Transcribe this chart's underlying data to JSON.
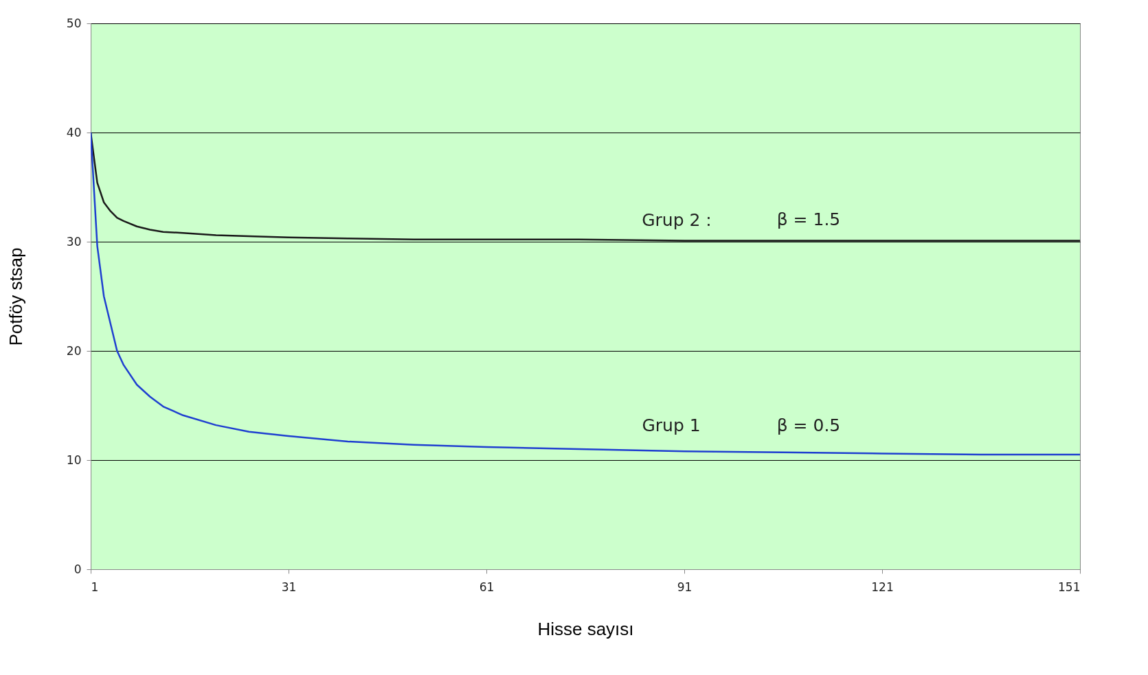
{
  "chart_data": {
    "type": "line",
    "xlabel": "Hisse sayısı",
    "ylabel": "Potföy stsap",
    "x": [
      1,
      2,
      3,
      4,
      5,
      6,
      8,
      10,
      12,
      15,
      20,
      25,
      31,
      40,
      50,
      61,
      75,
      91,
      106,
      121,
      136,
      151
    ],
    "series": [
      {
        "color": "#1a1a1a",
        "values": [
          40,
          35.4,
          33.6,
          32.8,
          32.2,
          31.9,
          31.4,
          31.1,
          30.9,
          30.8,
          30.6,
          30.5,
          30.4,
          30.3,
          30.2,
          30.2,
          30.2,
          30.1,
          30.1,
          30.1,
          30.1,
          30.1
        ]
      },
      {
        "color": "#1f3fd0",
        "values": [
          40,
          29.6,
          25,
          22.5,
          20,
          18.7,
          16.9,
          15.8,
          14.9,
          14.1,
          13.2,
          12.6,
          12.2,
          11.7,
          11.4,
          11.2,
          11,
          10.8,
          10.7,
          10.6,
          10.5,
          10.5
        ]
      }
    ],
    "xlim": [
      1,
      151
    ],
    "xticks": [
      1,
      31,
      61,
      91,
      121,
      151
    ],
    "ylim": [
      0,
      50
    ],
    "yticks": [
      0,
      10,
      20,
      30,
      40,
      50
    ],
    "grid": "y",
    "legend": false,
    "line_style": "solid",
    "marker": "none",
    "annotations": [
      "Grup 2 :",
      "β = 1.5",
      "Grup 1",
      "β = 0.5"
    ]
  }
}
